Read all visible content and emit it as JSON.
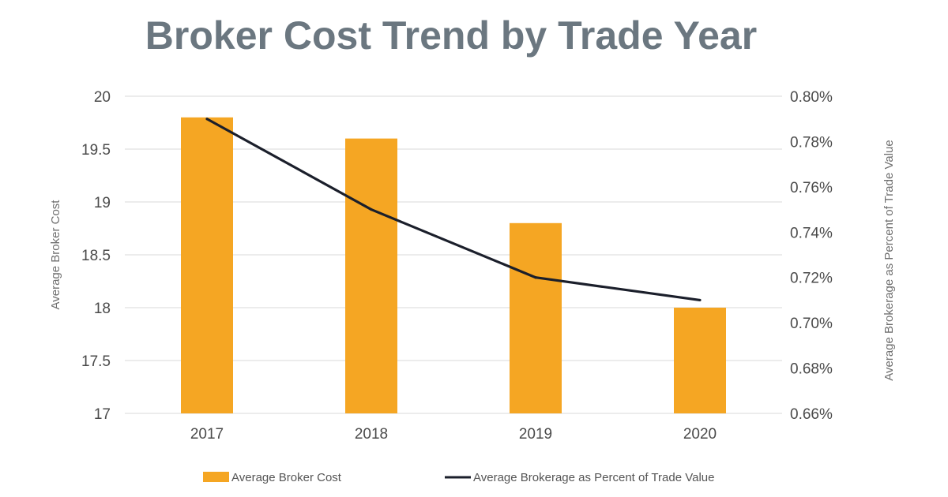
{
  "chart_data": {
    "type": "bar",
    "title": "Broker Cost Trend by Trade Year",
    "categories": [
      "2017",
      "2018",
      "2019",
      "2020"
    ],
    "series": [
      {
        "name": "Average Broker Cost",
        "type": "bar",
        "axis": "left",
        "values": [
          19.8,
          19.6,
          18.8,
          18.0
        ],
        "color": "#f5a623"
      },
      {
        "name": "Average Brokerage as Percent of Trade Value",
        "type": "line",
        "axis": "right",
        "values": [
          0.79,
          0.75,
          0.72,
          0.71
        ],
        "color": "#1b1f2b"
      }
    ],
    "y_left": {
      "label": "Average Broker Cost",
      "range": [
        17,
        20
      ],
      "ticks": [
        "17",
        "17.5",
        "18",
        "18.5",
        "19",
        "19.5",
        "20"
      ]
    },
    "y_right": {
      "label": "Average Brokerage as Percent of Trade Value",
      "range": [
        0.66,
        0.8
      ],
      "ticks": [
        "0.66%",
        "0.68%",
        "0.70%",
        "0.72%",
        "0.74%",
        "0.76%",
        "0.78%",
        "0.80%"
      ]
    },
    "grid": true,
    "legend_position": "bottom"
  }
}
